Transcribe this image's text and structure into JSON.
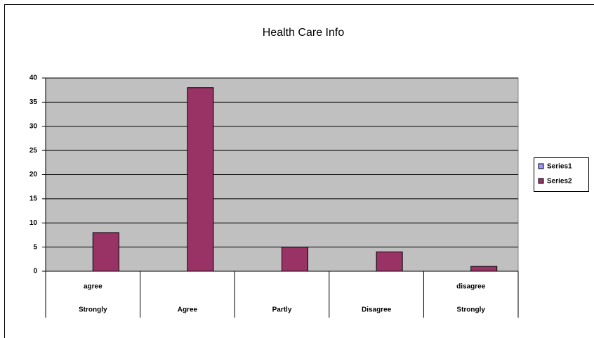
{
  "chart_data": {
    "type": "bar",
    "title": "Health Care Info",
    "categories": [
      "Strongly",
      "Agree",
      "Partly",
      "Disagree",
      "Strongly"
    ],
    "category_sublabels": [
      "agree",
      null,
      null,
      null,
      "disagree"
    ],
    "series": [
      {
        "name": "Series1",
        "color": "#9999ff",
        "values": [
          null,
          null,
          null,
          null,
          null
        ]
      },
      {
        "name": "Series2",
        "color": "#993366",
        "values": [
          8,
          38,
          5,
          4,
          1
        ]
      }
    ],
    "ylim": [
      0,
      40
    ],
    "yticks": [
      0,
      5,
      10,
      15,
      20,
      25,
      30,
      35,
      40
    ],
    "grid": true,
    "legend": "right"
  }
}
